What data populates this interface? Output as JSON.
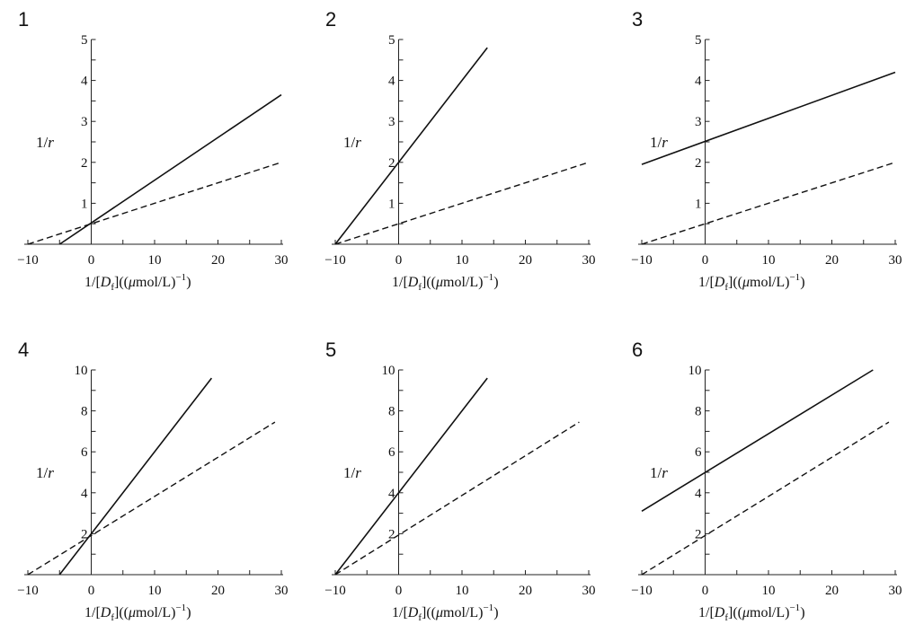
{
  "chart_data": [
    {
      "type": "line",
      "title": "1",
      "xlabel": "1/[D_f] ((μmol/L)⁻¹)",
      "ylabel": "1/r",
      "xlim": [
        -10,
        30
      ],
      "ylim": [
        0,
        5
      ],
      "xticks": [
        -10,
        0,
        10,
        20,
        30
      ],
      "yticks": [
        1,
        2,
        3,
        4,
        5
      ],
      "series": [
        {
          "style": "solid",
          "x": [
            -5,
            30
          ],
          "y": [
            0,
            3.65
          ]
        },
        {
          "style": "dashed",
          "x": [
            -10,
            30
          ],
          "y": [
            0,
            2.0
          ]
        }
      ]
    },
    {
      "type": "line",
      "title": "2",
      "xlabel": "1/[D_f] ((μmol/L)⁻¹)",
      "ylabel": "1/r",
      "xlim": [
        -10,
        30
      ],
      "ylim": [
        0,
        5
      ],
      "xticks": [
        -10,
        0,
        10,
        20,
        30
      ],
      "yticks": [
        1,
        2,
        3,
        4,
        5
      ],
      "series": [
        {
          "style": "solid",
          "x": [
            -10,
            14
          ],
          "y": [
            0,
            4.8
          ]
        },
        {
          "style": "dashed",
          "x": [
            -10,
            30
          ],
          "y": [
            0,
            2.0
          ]
        }
      ]
    },
    {
      "type": "line",
      "title": "3",
      "xlabel": "1/[D_f] ((μmol/L)⁻¹)",
      "ylabel": "1/r",
      "xlim": [
        -10,
        30
      ],
      "ylim": [
        0,
        5
      ],
      "xticks": [
        -10,
        0,
        10,
        20,
        30
      ],
      "yticks": [
        1,
        2,
        3,
        4,
        5
      ],
      "series": [
        {
          "style": "solid",
          "x": [
            -10,
            30
          ],
          "y": [
            1.95,
            4.2
          ]
        },
        {
          "style": "dashed",
          "x": [
            -10,
            30
          ],
          "y": [
            0,
            2.0
          ]
        }
      ]
    },
    {
      "type": "line",
      "title": "4",
      "xlabel": "1/[D_f] ((μmol/L)⁻¹)",
      "ylabel": "1/r",
      "xlim": [
        -10,
        30
      ],
      "ylim": [
        0,
        10
      ],
      "xticks": [
        -10,
        0,
        10,
        20,
        30
      ],
      "yticks": [
        2,
        4,
        6,
        8,
        10
      ],
      "series": [
        {
          "style": "solid",
          "x": [
            -5,
            19
          ],
          "y": [
            0,
            9.6
          ]
        },
        {
          "style": "dashed",
          "x": [
            -10,
            29
          ],
          "y": [
            0,
            7.45
          ]
        }
      ]
    },
    {
      "type": "line",
      "title": "5",
      "xlabel": "1/[D_f] ((μmol/L)⁻¹)",
      "ylabel": "1/r",
      "xlim": [
        -10,
        30
      ],
      "ylim": [
        0,
        10
      ],
      "xticks": [
        -10,
        0,
        10,
        20,
        30
      ],
      "yticks": [
        2,
        4,
        6,
        8,
        10
      ],
      "series": [
        {
          "style": "solid",
          "x": [
            -10,
            14
          ],
          "y": [
            0,
            9.6
          ]
        },
        {
          "style": "dashed",
          "x": [
            -10,
            28.5
          ],
          "y": [
            0,
            7.45
          ]
        }
      ]
    },
    {
      "type": "line",
      "title": "6",
      "xlabel": "1/[D_f] ((μmol/L)⁻¹)",
      "ylabel": "1/r",
      "xlim": [
        -10,
        30
      ],
      "ylim": [
        0,
        10
      ],
      "xticks": [
        -10,
        0,
        10,
        20,
        30
      ],
      "yticks": [
        2,
        4,
        6,
        8,
        10
      ],
      "series": [
        {
          "style": "solid",
          "x": [
            -10,
            26.5
          ],
          "y": [
            3.1,
            10.0
          ]
        },
        {
          "style": "dashed",
          "x": [
            -10,
            29
          ],
          "y": [
            0,
            7.45
          ]
        }
      ]
    }
  ]
}
